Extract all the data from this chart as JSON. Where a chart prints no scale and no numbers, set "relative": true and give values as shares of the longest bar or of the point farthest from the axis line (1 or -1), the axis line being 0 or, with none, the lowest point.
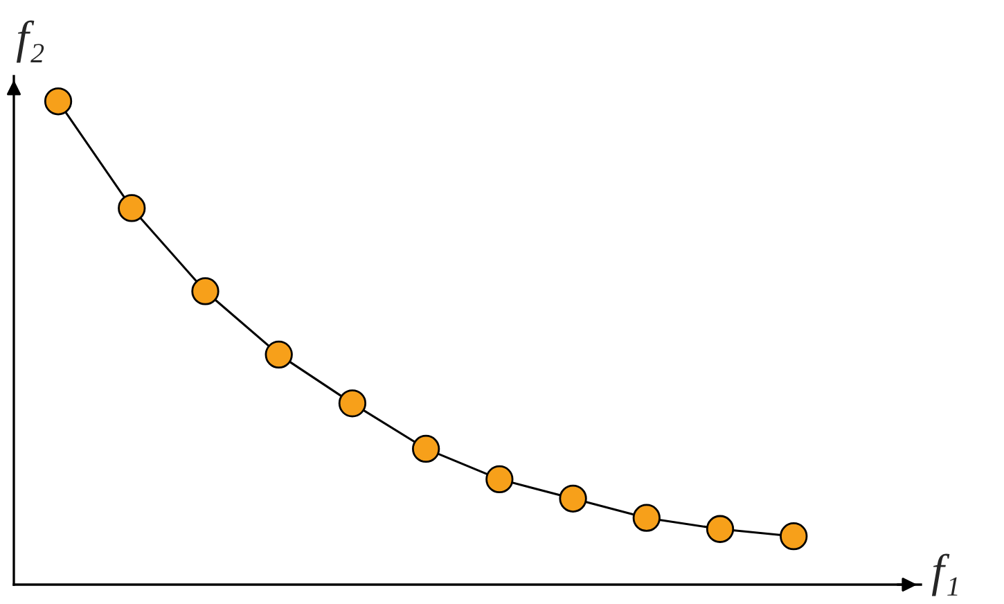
{
  "chart_data": {
    "type": "line",
    "relative": true,
    "xlabel": "f₁",
    "ylabel": "f₂",
    "marker": "circle",
    "line_style": "solid",
    "categories": [
      null,
      null,
      null,
      null,
      null,
      null,
      null,
      null,
      null,
      null,
      null
    ],
    "series": [
      {
        "color": "#000000",
        "colors": [
          "#f7a01a",
          "#f7a01a",
          "#f7a01a",
          "#f7a01a",
          "#f7a01a",
          "#f7a01a",
          "#f7a01a",
          "#f7a01a",
          "#f7a01a",
          "#f7a01a",
          "#f7a01a"
        ],
        "values": [
          1.0,
          0.779,
          0.607,
          0.476,
          0.375,
          0.281,
          0.218,
          0.178,
          0.138,
          0.115,
          0.1
        ]
      }
    ]
  }
}
